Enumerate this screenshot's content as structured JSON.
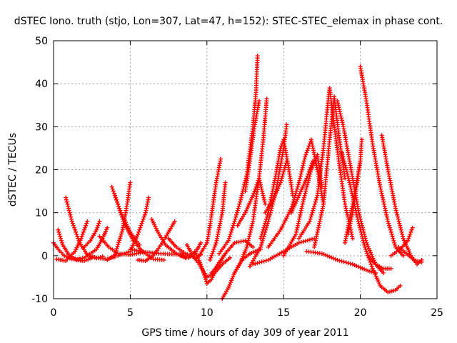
{
  "chart_data": {
    "type": "scatter",
    "title": "dSTEC Iono. truth (stjo, Lon=307, Lat=47, h=152): STEC-STEC_elemax in phase cont.",
    "xlabel": "GPS time / hours of day 309 of year 2011",
    "ylabel": "dSTEC  / TECUs",
    "xlim": [
      0,
      25
    ],
    "ylim": [
      -10,
      50
    ],
    "xticks": [
      0,
      5,
      10,
      15,
      20,
      25
    ],
    "yticks": [
      -10,
      0,
      10,
      20,
      30,
      40,
      50
    ],
    "grid": true,
    "marker": "plus",
    "marker_color": "#ff0000",
    "tracks": [
      [
        [
          0.0,
          3.0
        ],
        [
          0.3,
          1.5
        ],
        [
          0.7,
          0.0
        ],
        [
          1.2,
          -0.8
        ],
        [
          1.7,
          -0.8
        ]
      ],
      [
        [
          0.3,
          6.0
        ],
        [
          0.6,
          2.5
        ],
        [
          1.0,
          0.2
        ],
        [
          1.5,
          -1.0
        ],
        [
          2.0,
          -1.2
        ],
        [
          2.5,
          -0.5
        ]
      ],
      [
        [
          0.8,
          13.5
        ],
        [
          1.2,
          8.0
        ],
        [
          1.7,
          3.0
        ],
        [
          2.2,
          0.2
        ],
        [
          2.8,
          -0.6
        ],
        [
          3.2,
          -0.2
        ]
      ],
      [
        [
          0.2,
          -0.8
        ],
        [
          0.8,
          -1.2
        ],
        [
          1.4,
          1.0
        ],
        [
          1.8,
          4.0
        ],
        [
          2.2,
          8.0
        ]
      ],
      [
        [
          1.5,
          -1.0
        ],
        [
          2.0,
          -0.5
        ],
        [
          2.8,
          1.5
        ],
        [
          3.2,
          4.0
        ],
        [
          3.5,
          6.5
        ]
      ],
      [
        [
          2.0,
          2.0
        ],
        [
          2.4,
          3.5
        ],
        [
          2.8,
          6.0
        ],
        [
          3.0,
          8.0
        ]
      ],
      [
        [
          2.2,
          0.2
        ],
        [
          2.8,
          -0.5
        ],
        [
          3.5,
          -0.8
        ],
        [
          4.0,
          -0.3
        ]
      ],
      [
        [
          3.0,
          4.5
        ],
        [
          3.6,
          2.0
        ],
        [
          4.2,
          0.5
        ],
        [
          5.0,
          0.2
        ],
        [
          5.8,
          0.8
        ]
      ],
      [
        [
          3.8,
          16.0
        ],
        [
          4.1,
          13.0
        ],
        [
          4.6,
          7.5
        ],
        [
          5.2,
          3.5
        ],
        [
          5.8,
          1.0
        ],
        [
          6.5,
          -0.8
        ],
        [
          7.2,
          -1.0
        ]
      ],
      [
        [
          3.5,
          -1.0
        ],
        [
          4.0,
          0.2
        ],
        [
          4.5,
          6.0
        ],
        [
          4.8,
          12.0
        ],
        [
          5.0,
          17.0
        ]
      ],
      [
        [
          4.0,
          14.0
        ],
        [
          4.4,
          10.0
        ],
        [
          5.0,
          5.5
        ],
        [
          5.6,
          2.5
        ]
      ],
      [
        [
          4.2,
          0.0
        ],
        [
          5.0,
          1.0
        ],
        [
          5.5,
          5.0
        ],
        [
          6.0,
          10.0
        ],
        [
          6.2,
          13.5
        ]
      ],
      [
        [
          5.0,
          1.5
        ],
        [
          6.0,
          0.8
        ],
        [
          7.0,
          0.5
        ],
        [
          8.0,
          0.3
        ],
        [
          8.5,
          0.5
        ]
      ],
      [
        [
          5.5,
          -1.0
        ],
        [
          6.0,
          -1.2
        ],
        [
          6.5,
          0.0
        ],
        [
          7.0,
          2.5
        ],
        [
          7.5,
          5.5
        ],
        [
          7.9,
          8.0
        ]
      ],
      [
        [
          6.4,
          8.5
        ],
        [
          6.8,
          5.5
        ],
        [
          7.3,
          2.5
        ],
        [
          8.0,
          0.5
        ],
        [
          8.6,
          -0.5
        ]
      ],
      [
        [
          7.5,
          4.0
        ],
        [
          8.0,
          2.0
        ],
        [
          8.6,
          0.5
        ],
        [
          9.2,
          -0.5
        ],
        [
          9.6,
          0.2
        ]
      ],
      [
        [
          8.3,
          0.0
        ],
        [
          8.8,
          -0.5
        ],
        [
          9.3,
          1.0
        ],
        [
          9.6,
          3.0
        ]
      ],
      [
        [
          8.7,
          2.5
        ],
        [
          9.0,
          0.5
        ],
        [
          9.5,
          -2.0
        ],
        [
          10.0,
          -5.0
        ],
        [
          10.5,
          -4.0
        ],
        [
          11.0,
          -2.0
        ],
        [
          11.5,
          -0.5
        ]
      ],
      [
        [
          9.2,
          1.0
        ],
        [
          9.6,
          -2.0
        ],
        [
          10.0,
          -6.5
        ],
        [
          10.3,
          -5.5
        ],
        [
          10.7,
          -2.0
        ],
        [
          11.2,
          0.5
        ]
      ],
      [
        [
          9.5,
          0.0
        ],
        [
          10.0,
          3.0
        ],
        [
          10.2,
          7.0
        ],
        [
          10.4,
          12.0
        ],
        [
          10.6,
          17.0
        ],
        [
          10.9,
          22.5
        ]
      ],
      [
        [
          10.3,
          -4.0
        ],
        [
          10.8,
          -2.0
        ],
        [
          11.2,
          0.5
        ],
        [
          11.8,
          3.0
        ],
        [
          12.5,
          3.5
        ],
        [
          13.0,
          2.0
        ]
      ],
      [
        [
          10.2,
          -1.0
        ],
        [
          10.6,
          3.0
        ],
        [
          11.0,
          10.0
        ],
        [
          11.2,
          17.0
        ]
      ],
      [
        [
          11.0,
          -10.0
        ],
        [
          11.4,
          -7.5
        ],
        [
          11.8,
          -4.0
        ],
        [
          12.3,
          -1.0
        ],
        [
          12.8,
          0.5
        ],
        [
          13.5,
          1.5
        ]
      ],
      [
        [
          10.8,
          0.5
        ],
        [
          11.4,
          3.5
        ],
        [
          11.8,
          8.0
        ],
        [
          12.2,
          13.0
        ],
        [
          12.6,
          19.0
        ],
        [
          13.0,
          30.0
        ],
        [
          13.2,
          38.0
        ],
        [
          13.3,
          46.5
        ]
      ],
      [
        [
          11.8,
          -4.0
        ],
        [
          12.2,
          -1.5
        ],
        [
          12.6,
          2.0
        ],
        [
          13.0,
          8.0
        ],
        [
          13.4,
          18.0
        ],
        [
          13.7,
          28.0
        ],
        [
          13.9,
          36.5
        ]
      ],
      [
        [
          12.5,
          15.0
        ],
        [
          12.8,
          22.0
        ],
        [
          13.1,
          30.0
        ],
        [
          13.4,
          36.0
        ]
      ],
      [
        [
          12.0,
          7.0
        ],
        [
          12.5,
          10.0
        ],
        [
          13.0,
          14.0
        ],
        [
          13.4,
          18.0
        ],
        [
          13.8,
          12.0
        ]
      ],
      [
        [
          12.8,
          -2.5
        ],
        [
          13.5,
          2.0
        ],
        [
          14.0,
          8.0
        ],
        [
          14.5,
          15.0
        ],
        [
          15.0,
          25.0
        ],
        [
          15.2,
          30.5
        ]
      ],
      [
        [
          13.5,
          4.0
        ],
        [
          14.0,
          10.0
        ],
        [
          14.5,
          19.0
        ],
        [
          14.8,
          25.0
        ],
        [
          15.0,
          27.0
        ],
        [
          15.3,
          21.0
        ],
        [
          15.6,
          14.0
        ]
      ],
      [
        [
          13.8,
          10.0
        ],
        [
          14.3,
          13.0
        ],
        [
          14.8,
          17.0
        ],
        [
          15.2,
          22.0
        ]
      ],
      [
        [
          13.0,
          -2.0
        ],
        [
          14.0,
          -1.0
        ],
        [
          15.0,
          1.0
        ],
        [
          16.0,
          3.0
        ],
        [
          17.0,
          4.0
        ]
      ],
      [
        [
          14.0,
          2.0
        ],
        [
          14.8,
          6.0
        ],
        [
          15.5,
          11.0
        ],
        [
          16.0,
          17.0
        ],
        [
          16.4,
          23.0
        ],
        [
          16.8,
          27.0
        ],
        [
          17.2,
          20.0
        ],
        [
          17.6,
          12.0
        ]
      ],
      [
        [
          15.0,
          0.0
        ],
        [
          15.8,
          5.0
        ],
        [
          16.3,
          13.0
        ],
        [
          16.8,
          20.0
        ],
        [
          17.2,
          23.5
        ],
        [
          17.5,
          16.0
        ]
      ],
      [
        [
          15.5,
          10.0
        ],
        [
          16.0,
          14.0
        ],
        [
          16.5,
          18.0
        ],
        [
          16.9,
          22.0
        ]
      ],
      [
        [
          16.0,
          4.0
        ],
        [
          16.7,
          8.0
        ],
        [
          17.2,
          14.0
        ],
        [
          17.6,
          25.0
        ],
        [
          17.9,
          36.0
        ],
        [
          18.0,
          39.0
        ],
        [
          18.2,
          33.0
        ],
        [
          18.6,
          22.0
        ],
        [
          19.0,
          12.0
        ],
        [
          19.5,
          4.0
        ]
      ],
      [
        [
          17.0,
          2.0
        ],
        [
          17.6,
          12.0
        ],
        [
          18.0,
          27.0
        ],
        [
          18.3,
          37.0
        ],
        [
          18.6,
          28.0
        ],
        [
          19.0,
          18.0
        ]
      ],
      [
        [
          16.5,
          1.0
        ],
        [
          17.5,
          0.5
        ],
        [
          18.5,
          -1.0
        ],
        [
          19.5,
          -2.0
        ],
        [
          20.5,
          -3.5
        ],
        [
          21.0,
          -4.0
        ]
      ],
      [
        [
          18.5,
          36.0
        ],
        [
          18.9,
          30.0
        ],
        [
          19.4,
          20.0
        ],
        [
          19.9,
          10.0
        ],
        [
          20.4,
          3.0
        ],
        [
          21.0,
          -2.0
        ],
        [
          21.5,
          -4.0
        ]
      ],
      [
        [
          18.8,
          24.0
        ],
        [
          19.3,
          17.0
        ],
        [
          19.8,
          9.0
        ],
        [
          20.3,
          2.0
        ],
        [
          20.8,
          -3.0
        ],
        [
          21.3,
          -7.0
        ],
        [
          21.8,
          -8.5
        ],
        [
          22.3,
          -8.0
        ],
        [
          22.6,
          -7.0
        ]
      ],
      [
        [
          19.0,
          3.0
        ],
        [
          19.5,
          12.0
        ],
        [
          20.0,
          22.0
        ],
        [
          20.1,
          27.0
        ]
      ],
      [
        [
          19.2,
          5.0
        ],
        [
          19.5,
          10.0
        ],
        [
          19.8,
          17.0
        ],
        [
          20.0,
          22.0
        ]
      ],
      [
        [
          20.0,
          44.0
        ],
        [
          20.4,
          36.0
        ],
        [
          20.8,
          26.0
        ],
        [
          21.3,
          16.0
        ],
        [
          21.8,
          8.0
        ],
        [
          22.3,
          2.0
        ],
        [
          22.8,
          0.0
        ]
      ],
      [
        [
          20.5,
          0.0
        ],
        [
          21.0,
          -2.0
        ],
        [
          21.5,
          -3.0
        ],
        [
          22.0,
          -3.0
        ]
      ],
      [
        [
          21.4,
          28.0
        ],
        [
          21.8,
          20.0
        ],
        [
          22.3,
          11.0
        ],
        [
          22.8,
          4.0
        ],
        [
          23.3,
          0.0
        ],
        [
          23.7,
          -2.0
        ],
        [
          24.0,
          -1.0
        ]
      ],
      [
        [
          22.0,
          0.0
        ],
        [
          22.6,
          1.5
        ],
        [
          23.1,
          3.5
        ],
        [
          23.4,
          6.5
        ]
      ],
      [
        [
          22.5,
          2.0
        ],
        [
          23.0,
          0.5
        ],
        [
          23.5,
          -1.0
        ],
        [
          24.0,
          -1.5
        ]
      ]
    ]
  }
}
